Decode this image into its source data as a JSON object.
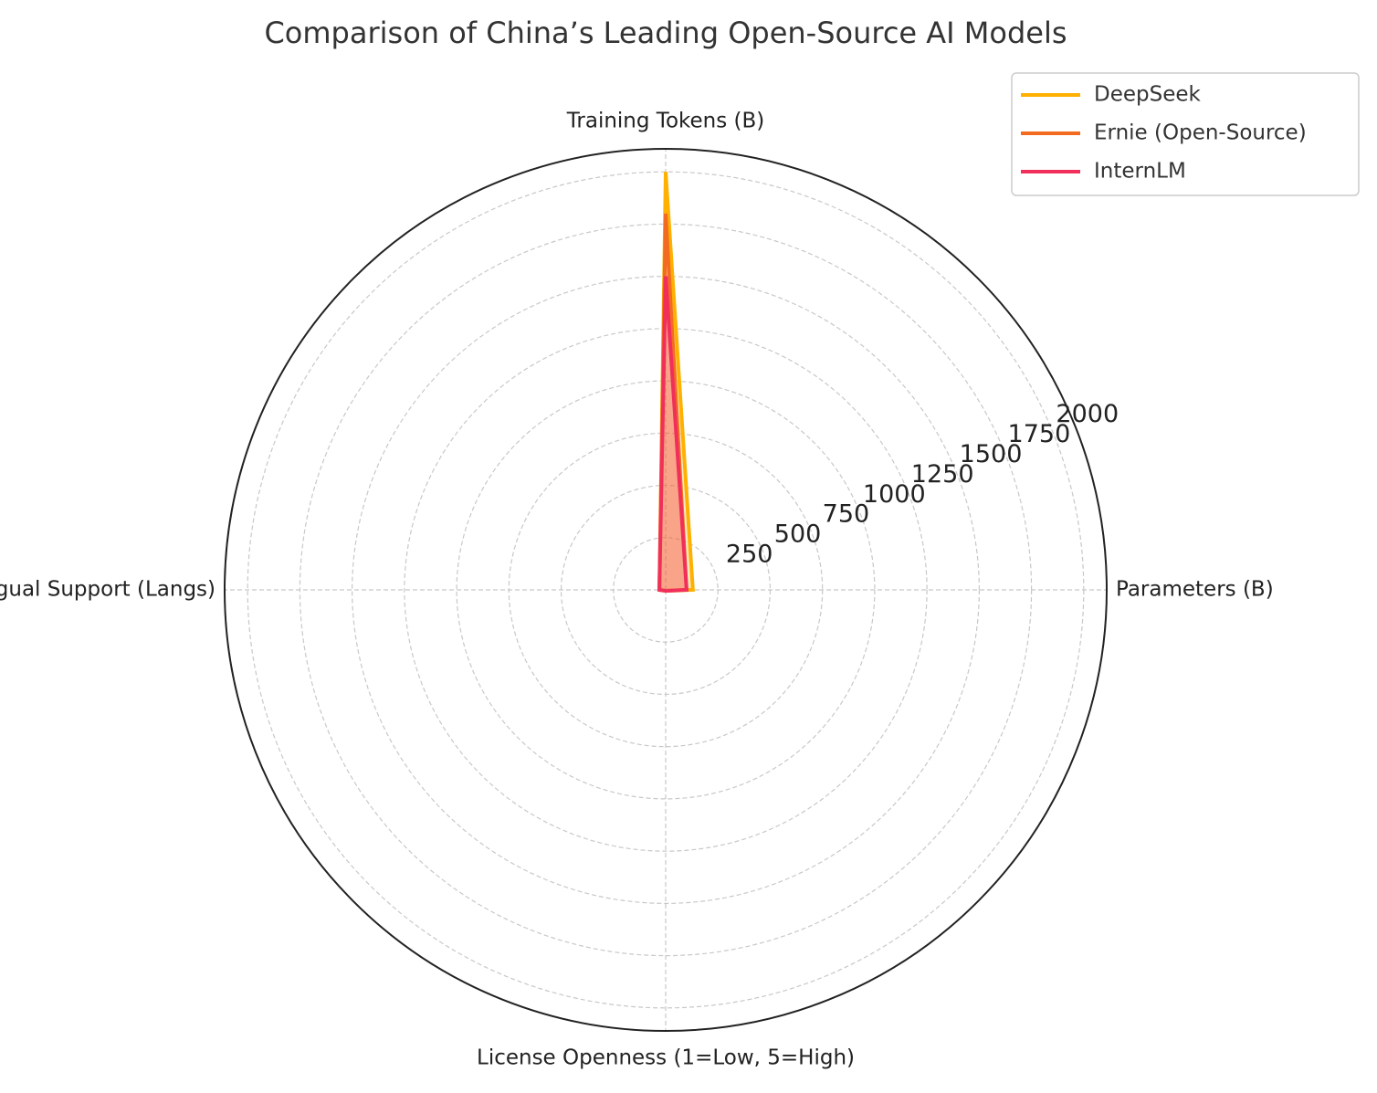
{
  "chart_data": {
    "type": "radar",
    "title": "Comparison of China’s Leading Open-Source AI Models",
    "categories": [
      "Parameters (B)",
      "Training Tokens (B)",
      "Multilingual Support (Langs)",
      "License Openness (1=Low, 5=High)"
    ],
    "series": [
      {
        "name": "DeepSeek",
        "color": "#ffb000",
        "values": [
          130,
          2000,
          30,
          5
        ]
      },
      {
        "name": "Ernie (Open-Source)",
        "color": "#f26b21",
        "values": [
          100,
          1800,
          30,
          4
        ]
      },
      {
        "name": "InternLM",
        "color": "#f0305a",
        "values": [
          100,
          1500,
          30,
          5
        ]
      }
    ],
    "ylim": [
      0,
      2110
    ],
    "yticks": [
      250,
      500,
      750,
      1000,
      1250,
      1500,
      1750,
      2000
    ],
    "grid": true,
    "legend": "upper right"
  }
}
